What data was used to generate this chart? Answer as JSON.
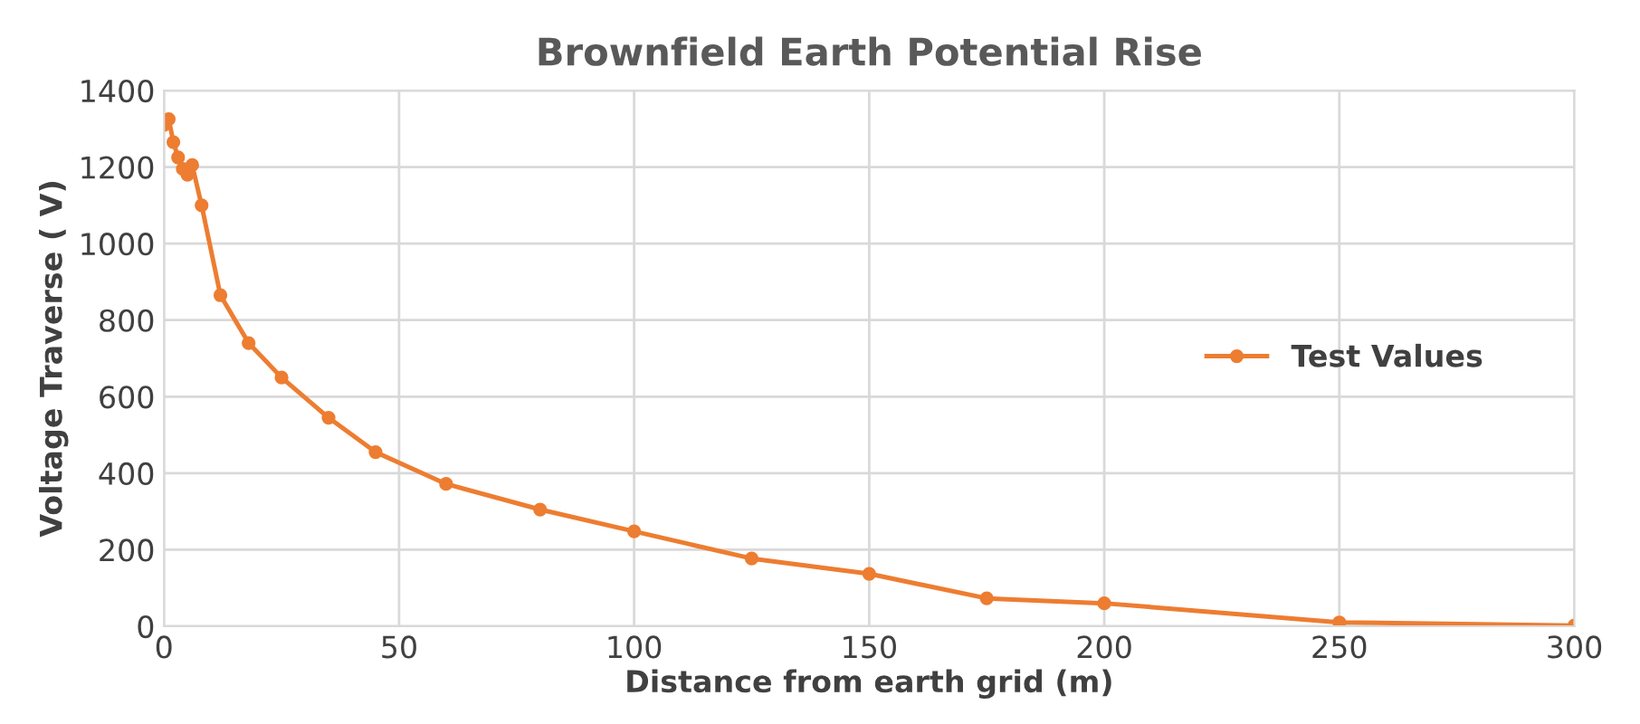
{
  "chart_data": {
    "type": "line",
    "title": "Brownfield Earth Potential Rise",
    "xlabel": "Distance from earth grid (m)",
    "ylabel": "Voltage Traverse ( V)",
    "series": [
      {
        "name": "Test Values",
        "color": "#ed7d31",
        "x": [
          0,
          1,
          2,
          3,
          4,
          5,
          6,
          8,
          12,
          18,
          25,
          35,
          45,
          60,
          80,
          100,
          125,
          150,
          175,
          200,
          250,
          300
        ],
        "values": [
          1310,
          1325,
          1265,
          1225,
          1195,
          1180,
          1205,
          1100,
          865,
          740,
          650,
          545,
          455,
          372,
          305,
          248,
          177,
          137,
          73,
          60,
          10,
          2
        ]
      }
    ],
    "xlim": [
      0,
      300
    ],
    "xticks": [
      0,
      50,
      100,
      150,
      200,
      250,
      300
    ],
    "ylim": [
      0,
      1400
    ],
    "yticks": [
      0,
      200,
      400,
      600,
      800,
      1000,
      1200,
      1400
    ],
    "grid": true,
    "legend": "right",
    "marker": "circle",
    "line_style": "solid"
  }
}
